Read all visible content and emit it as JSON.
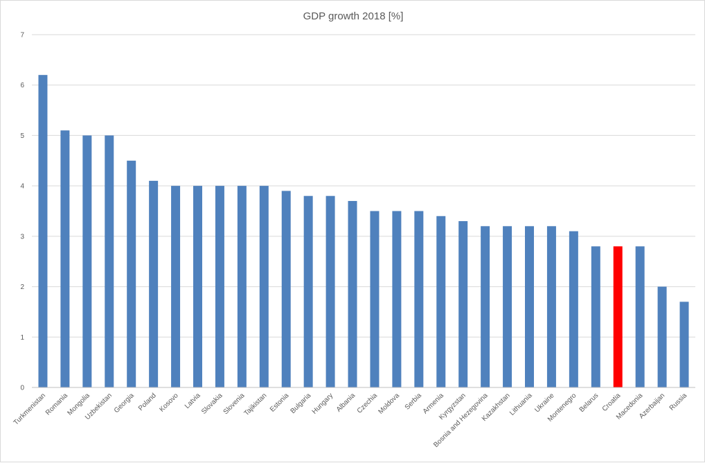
{
  "chart_data": {
    "type": "bar",
    "title": "GDP growth 2018 [%]",
    "xlabel": "",
    "ylabel": "",
    "ylim": [
      0,
      7
    ],
    "yticks": [
      0,
      1,
      2,
      3,
      4,
      5,
      6,
      7
    ],
    "grid": true,
    "legend": "none",
    "colors": {
      "default": "#4f81bd",
      "highlight": "#ff0000"
    },
    "highlight_category": "Croatia",
    "categories": [
      "Turkmenistan",
      "Romania",
      "Mongolia",
      "Uzbekistan",
      "Georgia",
      "Poland",
      "Kosovo",
      "Latvia",
      "Slovakia",
      "Slovenia",
      "Tajikistan",
      "Estonia",
      "Bulgaria",
      "Hungary",
      "Albania",
      "Czechia",
      "Moldova",
      "Serbia",
      "Armenia",
      "Kyrgyzstan",
      "Bosnia and Hezegovina",
      "Kazakhstan",
      "Lithuania",
      "Ukraine",
      "Montenegro",
      "Belarus",
      "Croatia",
      "Macedonia",
      "Azerbaijan",
      "Russia"
    ],
    "values": [
      6.2,
      5.1,
      5.0,
      5.0,
      4.5,
      4.1,
      4.0,
      4.0,
      4.0,
      4.0,
      4.0,
      3.9,
      3.8,
      3.8,
      3.7,
      3.5,
      3.5,
      3.5,
      3.4,
      3.3,
      3.2,
      3.2,
      3.2,
      3.2,
      3.1,
      2.8,
      2.8,
      2.8,
      2.0,
      1.7
    ]
  }
}
